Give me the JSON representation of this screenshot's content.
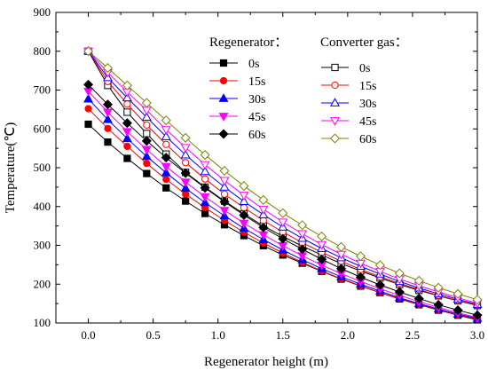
{
  "chart_data": {
    "type": "line",
    "xlabel": "Regenerator height (m)",
    "ylabel": "Temperature(℃)",
    "xlim": [
      -0.25,
      3.0
    ],
    "ylim": [
      100,
      900
    ],
    "xticks": [
      "0.0",
      "0.5",
      "1.0",
      "1.5",
      "2.0",
      "2.5",
      "3.0"
    ],
    "yticks": [
      "100",
      "200",
      "300",
      "400",
      "500",
      "600",
      "700",
      "800",
      "900"
    ],
    "grid": false,
    "legend_groups": [
      {
        "title": "Regenerator：",
        "placement": "top-center"
      },
      {
        "title": "Converter gas：",
        "placement": "top-right"
      }
    ],
    "x": [
      0,
      0.15,
      0.3,
      0.45,
      0.6,
      0.75,
      0.9,
      1.05,
      1.2,
      1.35,
      1.5,
      1.65,
      1.8,
      1.95,
      2.1,
      2.25,
      2.4,
      2.55,
      2.7,
      2.85,
      3.0
    ],
    "series": [
      {
        "name": "0s",
        "group": "Regenerator",
        "color": "#000000",
        "marker": "square",
        "filled": true,
        "values": [
          612,
          566,
          524,
          485,
          448,
          414,
          382,
          353,
          325,
          299,
          275,
          254,
          233,
          213,
          195,
          178,
          162,
          147,
          133,
          120,
          108
        ]
      },
      {
        "name": "15s",
        "group": "Regenerator",
        "color": "#ff0000",
        "marker": "circle",
        "filled": true,
        "values": [
          652,
          601,
          555,
          511,
          470,
          432,
          397,
          364,
          334,
          306,
          280,
          256,
          234,
          214,
          196,
          178,
          163,
          148,
          134,
          121,
          110
        ]
      },
      {
        "name": "30s",
        "group": "Regenerator",
        "color": "#0000ff",
        "marker": "triangle-up",
        "filled": true,
        "values": [
          677,
          624,
          575,
          529,
          487,
          447,
          410,
          376,
          344,
          315,
          288,
          263,
          240,
          219,
          200,
          182,
          165,
          150,
          136,
          123,
          112
        ]
      },
      {
        "name": "45s",
        "group": "Regenerator",
        "color": "#ff00ff",
        "marker": "triangle-down",
        "filled": true,
        "values": [
          697,
          643,
          593,
          547,
          503,
          463,
          425,
          390,
          357,
          327,
          299,
          273,
          249,
          227,
          207,
          188,
          171,
          155,
          140,
          126,
          114
        ]
      },
      {
        "name": "60s",
        "group": "Regenerator",
        "color": "#000000",
        "marker": "diamond",
        "filled": true,
        "values": [
          714,
          663,
          615,
          569,
          526,
          486,
          448,
          412,
          378,
          346,
          317,
          290,
          264,
          240,
          218,
          198,
          180,
          163,
          147,
          133,
          120
        ]
      },
      {
        "name": "0s",
        "group": "Converter gas",
        "color": "#000000",
        "marker": "square",
        "filled": false,
        "values": [
          800,
          712,
          643,
          588,
          535,
          488,
          450,
          414,
          381,
          350,
          323,
          298,
          275,
          253,
          234,
          216,
          199,
          184,
          170,
          157,
          145
        ]
      },
      {
        "name": "15s",
        "group": "Converter gas",
        "color": "#ff0000",
        "marker": "circle",
        "filled": false,
        "values": [
          800,
          722,
          664,
          610,
          560,
          513,
          471,
          432,
          397,
          364,
          334,
          307,
          282,
          259,
          238,
          219,
          202,
          186,
          171,
          158,
          146
        ]
      },
      {
        "name": "30s",
        "group": "Converter gas",
        "color": "#0000ff",
        "marker": "triangle-up",
        "filled": false,
        "values": [
          800,
          732,
          680,
          630,
          580,
          533,
          490,
          450,
          413,
          379,
          347,
          318,
          292,
          268,
          246,
          226,
          207,
          190,
          175,
          161,
          148
        ]
      },
      {
        "name": "45s",
        "group": "Converter gas",
        "color": "#ff00ff",
        "marker": "triangle-down",
        "filled": false,
        "values": [
          800,
          745,
          695,
          648,
          598,
          552,
          508,
          467,
          429,
          393,
          360,
          330,
          302,
          277,
          254,
          233,
          213,
          196,
          180,
          165,
          151
        ]
      },
      {
        "name": "60s",
        "group": "Converter gas",
        "color": "#808000",
        "marker": "diamond",
        "filled": false,
        "values": [
          800,
          757,
          712,
          667,
          622,
          577,
          533,
          492,
          453,
          417,
          383,
          352,
          323,
          296,
          272,
          249,
          228,
          209,
          191,
          175,
          160
        ]
      }
    ]
  }
}
